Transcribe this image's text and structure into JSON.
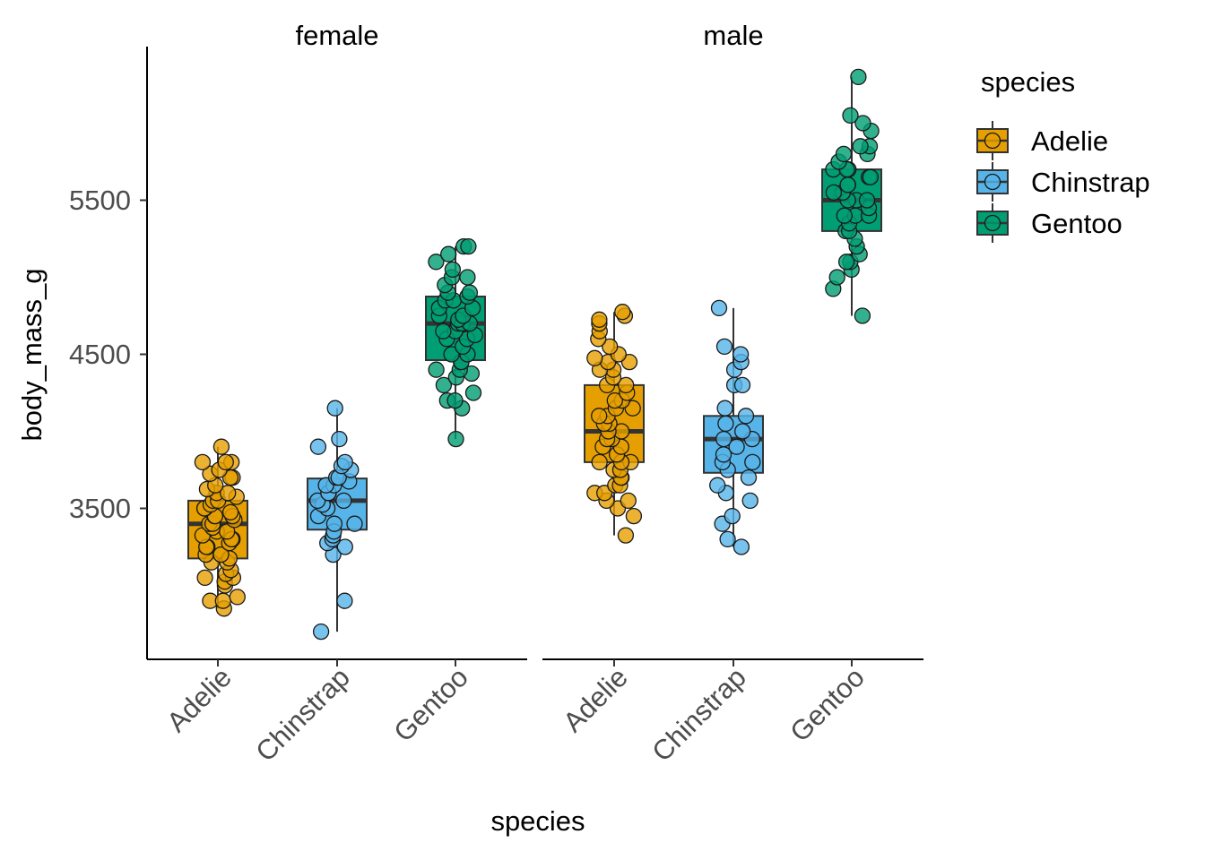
{
  "chart_data": {
    "type": "box",
    "xlabel": "species",
    "ylabel": "body_mass_g",
    "facet_labels": [
      "female",
      "male"
    ],
    "categories": [
      "Adelie",
      "Chinstrap",
      "Gentoo"
    ],
    "yticks": [
      "3500",
      "4500",
      "5500"
    ],
    "ylim": [
      2600,
      6500
    ],
    "legend": {
      "title": "species",
      "position": "right",
      "labels": [
        "Adelie",
        "Chinstrap",
        "Gentoo"
      ]
    },
    "colors": {
      "Adelie": "#E69F00",
      "Chinstrap": "#56B4E9",
      "Gentoo": "#009E73"
    },
    "grid": false,
    "panels": [
      {
        "facet": "female",
        "boxes": [
          {
            "species": "Adelie",
            "min": 2850,
            "q1": 3175,
            "median": 3400,
            "q3": 3550,
            "max": 3900
          },
          {
            "species": "Chinstrap",
            "min": 2700,
            "q1": 3362,
            "median": 3550,
            "q3": 3694,
            "max": 4150
          },
          {
            "species": "Gentoo",
            "min": 3950,
            "q1": 4462,
            "median": 4700,
            "q3": 4875,
            "max": 5200
          }
        ],
        "points": [
          {
            "species": "Adelie",
            "values": [
              2850,
              2900,
              2900,
              2925,
              3000,
              3025,
              3050,
              3050,
              3075,
              3100,
              3150,
              3150,
              3175,
              3200,
              3200,
              3250,
              3250,
              3275,
              3300,
              3300,
              3325,
              3350,
              3350,
              3375,
              3400,
              3400,
              3425,
              3450,
              3450,
              3450,
              3475,
              3500,
              3500,
              3525,
              3550,
              3550,
              3575,
              3600,
              3600,
              3625,
              3650,
              3700,
              3700,
              3725,
              3750,
              3800,
              3800,
              3800,
              3900
            ]
          },
          {
            "species": "Chinstrap",
            "values": [
              2700,
              2900,
              3200,
              3250,
              3275,
              3300,
              3325,
              3350,
              3400,
              3400,
              3450,
              3500,
              3525,
              3550,
              3550,
              3600,
              3600,
              3650,
              3650,
              3675,
              3700,
              3700,
              3750,
              3775,
              3800,
              3900,
              3950,
              4150
            ]
          },
          {
            "species": "Gentoo",
            "values": [
              3950,
              4150,
              4200,
              4200,
              4250,
              4300,
              4350,
              4375,
              4400,
              4400,
              4450,
              4450,
              4500,
              4500,
              4550,
              4600,
              4600,
              4625,
              4650,
              4650,
              4700,
              4700,
              4700,
              4725,
              4750,
              4750,
              4800,
              4800,
              4850,
              4850,
              4875,
              4900,
              4900,
              4950,
              5000,
              5000,
              5050,
              5100,
              5150,
              5200,
              5200
            ]
          }
        ]
      },
      {
        "facet": "male",
        "boxes": [
          {
            "species": "Adelie",
            "min": 3325,
            "q1": 3800,
            "median": 4000,
            "q3": 4300,
            "max": 4775
          },
          {
            "species": "Chinstrap",
            "min": 3250,
            "q1": 3731,
            "median": 3950,
            "q3": 4100,
            "max": 4800
          },
          {
            "species": "Gentoo",
            "min": 4750,
            "q1": 5300,
            "median": 5500,
            "q3": 5700,
            "max": 6300
          }
        ],
        "points": [
          {
            "species": "Adelie",
            "values": [
              3325,
              3450,
              3500,
              3550,
              3550,
              3600,
              3600,
              3650,
              3650,
              3700,
              3700,
              3750,
              3750,
              3800,
              3800,
              3800,
              3850,
              3900,
              3900,
              3950,
              3950,
              4000,
              4000,
              4050,
              4050,
              4100,
              4100,
              4150,
              4150,
              4200,
              4200,
              4250,
              4300,
              4300,
              4350,
              4400,
              4400,
              4450,
              4450,
              4475,
              4500,
              4550,
              4600,
              4650,
              4700,
              4725,
              4750,
              4775
            ]
          },
          {
            "species": "Chinstrap",
            "values": [
              3250,
              3300,
              3400,
              3450,
              3550,
              3600,
              3650,
              3700,
              3750,
              3800,
              3800,
              3850,
              3900,
              3950,
              3950,
              4000,
              4050,
              4100,
              4150,
              4300,
              4300,
              4400,
              4450,
              4500,
              4550,
              4800
            ]
          },
          {
            "species": "Gentoo",
            "values": [
              4750,
              4925,
              5000,
              5050,
              5100,
              5100,
              5150,
              5200,
              5250,
              5300,
              5300,
              5350,
              5400,
              5400,
              5400,
              5450,
              5500,
              5500,
              5500,
              5550,
              5550,
              5600,
              5600,
              5650,
              5650,
              5700,
              5700,
              5700,
              5750,
              5800,
              5800,
              5850,
              5850,
              5950,
              6000,
              6050,
              6300
            ]
          }
        ]
      }
    ]
  }
}
